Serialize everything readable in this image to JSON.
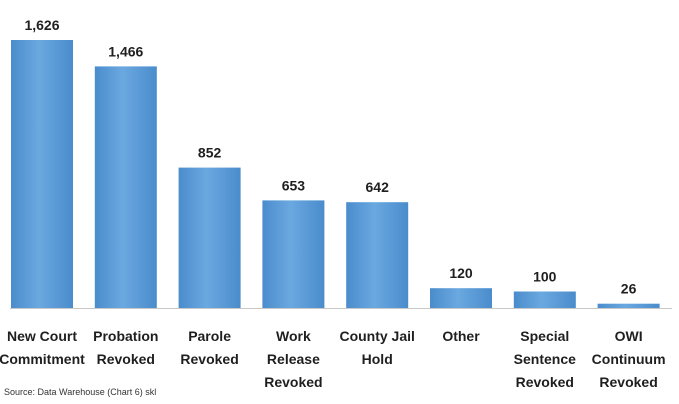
{
  "chart_data": {
    "type": "bar",
    "categories": [
      [
        "New Court",
        "Commitment"
      ],
      [
        "Probation",
        "Revoked"
      ],
      [
        "Parole",
        "Revoked"
      ],
      [
        "Work",
        "Release",
        "Revoked"
      ],
      [
        "County Jail",
        "Hold"
      ],
      [
        "Other"
      ],
      [
        "Special",
        "Sentence",
        "Revoked"
      ],
      [
        "OWI",
        "Continuum",
        "Revoked"
      ]
    ],
    "values": [
      1626,
      1466,
      852,
      653,
      642,
      120,
      100,
      26
    ],
    "value_labels": [
      "1,626",
      "1,466",
      "852",
      "653",
      "642",
      "120",
      "100",
      "26"
    ],
    "title": "",
    "xlabel": "",
    "ylabel": "",
    "ylim": [
      0,
      1626
    ],
    "grid": false,
    "legend": "none",
    "bar_color": "#5b9bd5",
    "baseline_color": "#c8c8c8"
  },
  "source_note": "Source: Data Warehouse (Chart 6) skl"
}
